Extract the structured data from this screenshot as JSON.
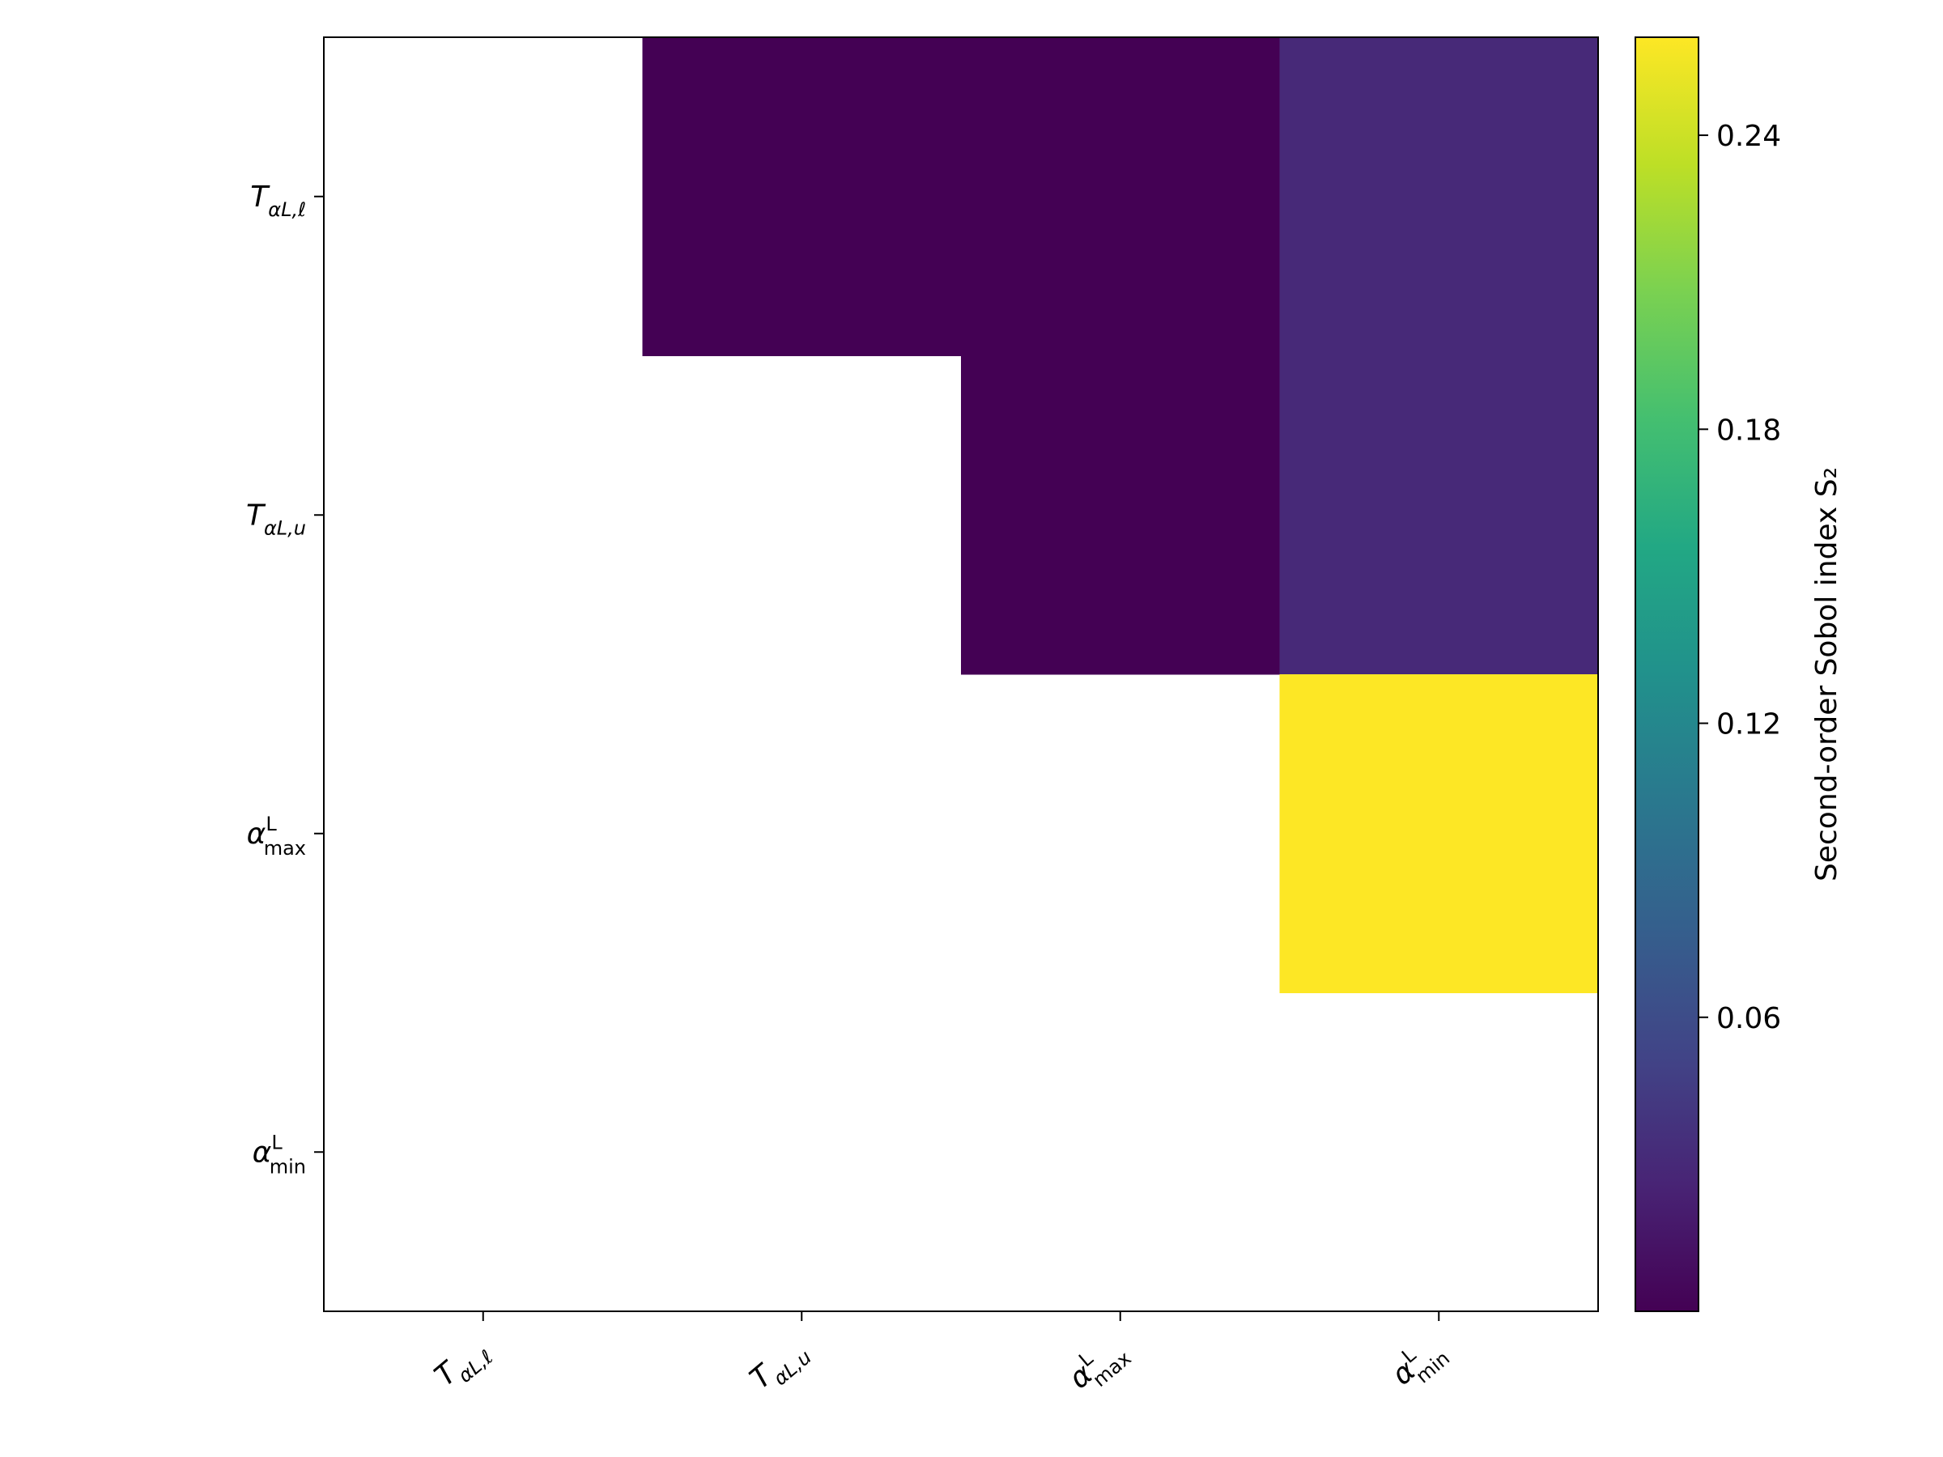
{
  "chart_data": {
    "type": "heatmap",
    "row_labels": [
      {
        "base": "T",
        "sub": "αL,ℓ"
      },
      {
        "base": "T",
        "sub": "αL,u"
      },
      {
        "base": "α",
        "sup": "L",
        "sub": "max"
      },
      {
        "base": "α",
        "sup": "L",
        "sub": "min"
      }
    ],
    "col_labels": [
      {
        "base": "T",
        "sub": "αL,ℓ"
      },
      {
        "base": "T",
        "sub": "αL,u"
      },
      {
        "base": "α",
        "sup": "L",
        "sub": "max"
      },
      {
        "base": "α",
        "sup": "L",
        "sub": "min"
      }
    ],
    "values": [
      [
        null,
        0.0,
        0.0,
        0.03
      ],
      [
        null,
        null,
        0.0,
        0.03
      ],
      [
        null,
        null,
        null,
        0.26
      ],
      [
        null,
        null,
        null,
        null
      ]
    ],
    "colormap": "viridis",
    "vmin": 0.0,
    "vmax": 0.26,
    "colorbar": {
      "label": "Second-order Sobol index S₂",
      "ticks": [
        0.06,
        0.12,
        0.18,
        0.24
      ],
      "tick_labels": [
        "0.06",
        "0.12",
        "0.18",
        "0.24"
      ]
    },
    "xlabel": "",
    "ylabel": "",
    "title": ""
  }
}
